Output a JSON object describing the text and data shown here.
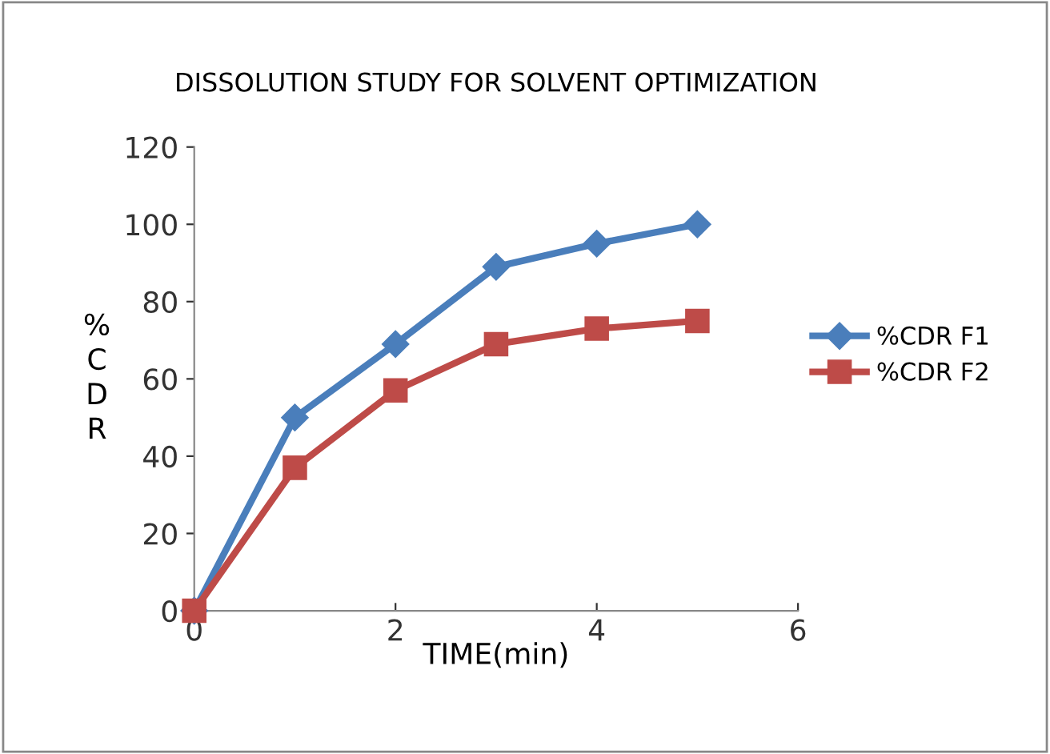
{
  "chart_data": {
    "type": "line",
    "title": "DISSOLUTION STUDY FOR SOLVENT OPTIMIZATION",
    "xlabel": "TIME(min)",
    "ylabel": "%CDR",
    "x": [
      0,
      1,
      2,
      3,
      4,
      5
    ],
    "series": [
      {
        "name": "%CDR F1",
        "color": "#4a7ebb",
        "values": [
          0,
          50,
          69,
          89,
          95,
          100
        ],
        "marker": "diamond"
      },
      {
        "name": "%CDR F2",
        "color": "#be4b48",
        "values": [
          0,
          37,
          57,
          69,
          73,
          75
        ],
        "marker": "square"
      }
    ],
    "xlim": [
      0,
      6
    ],
    "xticks": [
      0,
      2,
      4,
      6
    ],
    "ylim": [
      0,
      120
    ],
    "yticks": [
      0,
      20,
      40,
      60,
      80,
      100,
      120
    ],
    "grid": false,
    "legend": "right",
    "line_style": "solid"
  }
}
